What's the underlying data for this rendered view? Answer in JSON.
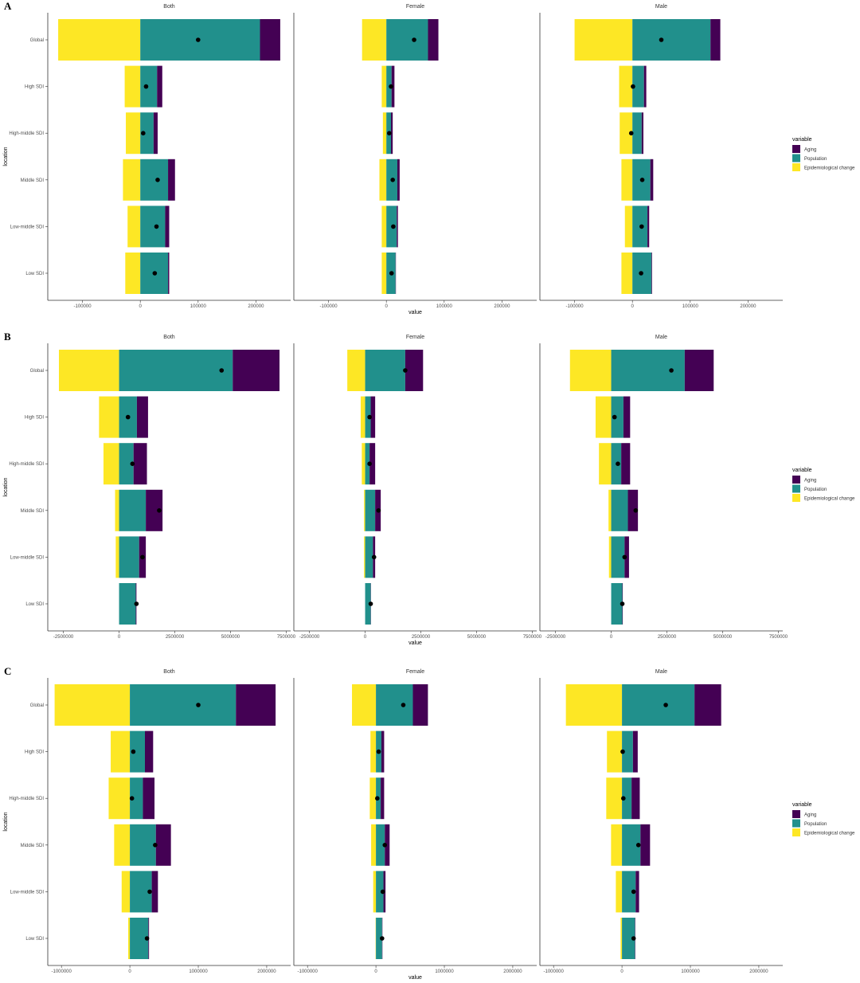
{
  "colors": {
    "aging": "#440154",
    "population": "#21908C",
    "epi": "#FDE725",
    "point": "#000000",
    "axis": "#333333"
  },
  "labels": {
    "ylabel": "location",
    "xlabel": "value",
    "legend_title": "variable",
    "legend": [
      "Aging",
      "Population",
      "Epidemiological change"
    ],
    "facets": [
      "Both",
      "Female",
      "Male"
    ],
    "locations": [
      "Global",
      "High SDI",
      "High-middle SDI",
      "Middle SDI",
      "Low-middle SDI",
      "Low SDI"
    ]
  },
  "chart_data": [
    {
      "panel": "A",
      "type": "bar",
      "xlabel": "value",
      "ylabel": "location",
      "xlim": [
        -160000,
        260000
      ],
      "xticks": [
        {
          "v": -100000,
          "label": "-100000"
        },
        {
          "v": 0,
          "label": "0"
        },
        {
          "v": 100000,
          "label": "100000"
        },
        {
          "v": 200000,
          "label": "200000"
        }
      ],
      "show_xlabel": true,
      "facets": [
        {
          "name": "Both",
          "rows": [
            {
              "location": "Global",
              "epi": -142000,
              "pop": 207000,
              "aging": 35000,
              "total": 100000
            },
            {
              "location": "High SDI",
              "epi": -27000,
              "pop": 29000,
              "aging": 9000,
              "total": 10000
            },
            {
              "location": "High-middle SDI",
              "epi": -25000,
              "pop": 23000,
              "aging": 7000,
              "total": 5000
            },
            {
              "location": "Middle SDI",
              "epi": -30000,
              "pop": 48000,
              "aging": 12000,
              "total": 30000
            },
            {
              "location": "Low-middle SDI",
              "epi": -22000,
              "pop": 43000,
              "aging": 7000,
              "total": 28000
            },
            {
              "location": "Low SDI",
              "epi": -26000,
              "pop": 48000,
              "aging": 2000,
              "total": 25000
            }
          ]
        },
        {
          "name": "Female",
          "rows": [
            {
              "location": "Global",
              "epi": -42000,
              "pop": 72000,
              "aging": 18000,
              "total": 48000
            },
            {
              "location": "High SDI",
              "epi": -8000,
              "pop": 9000,
              "aging": 5000,
              "total": 8000
            },
            {
              "location": "High-middle SDI",
              "epi": -6000,
              "pop": 8000,
              "aging": 3000,
              "total": 5000
            },
            {
              "location": "Middle SDI",
              "epi": -12000,
              "pop": 19000,
              "aging": 4000,
              "total": 11000
            },
            {
              "location": "Low-middle SDI",
              "epi": -8000,
              "pop": 18000,
              "aging": 2000,
              "total": 12000
            },
            {
              "location": "Low SDI",
              "epi": -8000,
              "pop": 16000,
              "aging": 500,
              "total": 9000
            }
          ]
        },
        {
          "name": "Male",
          "rows": [
            {
              "location": "Global",
              "epi": -100000,
              "pop": 135000,
              "aging": 17000,
              "total": 50000
            },
            {
              "location": "High SDI",
              "epi": -23000,
              "pop": 20000,
              "aging": 4000,
              "total": 1000
            },
            {
              "location": "High-middle SDI",
              "epi": -22000,
              "pop": 16000,
              "aging": 3000,
              "total": -2000
            },
            {
              "location": "Middle SDI",
              "epi": -19000,
              "pop": 31000,
              "aging": 5000,
              "total": 17000
            },
            {
              "location": "Low-middle SDI",
              "epi": -13000,
              "pop": 26000,
              "aging": 3000,
              "total": 16000
            },
            {
              "location": "Low SDI",
              "epi": -19000,
              "pop": 33000,
              "aging": 1000,
              "total": 15000
            }
          ]
        }
      ]
    },
    {
      "panel": "B",
      "type": "bar",
      "xlabel": "value",
      "ylabel": "location",
      "xlim": [
        -3200000,
        7700000
      ],
      "xticks": [
        {
          "v": -2500000,
          "label": "-2500000"
        },
        {
          "v": 0,
          "label": "0"
        },
        {
          "v": 2500000,
          "label": "2500000"
        },
        {
          "v": 5000000,
          "label": "5000000"
        },
        {
          "v": 7500000,
          "label": "7500000"
        }
      ],
      "show_xlabel": true,
      "facets": [
        {
          "name": "Both",
          "rows": [
            {
              "location": "Global",
              "epi": -2700000,
              "pop": 5100000,
              "aging": 2100000,
              "total": 4600000
            },
            {
              "location": "High SDI",
              "epi": -900000,
              "pop": 800000,
              "aging": 500000,
              "total": 400000
            },
            {
              "location": "High-middle SDI",
              "epi": -700000,
              "pop": 650000,
              "aging": 600000,
              "total": 600000
            },
            {
              "location": "Middle SDI",
              "epi": -180000,
              "pop": 1200000,
              "aging": 750000,
              "total": 1800000
            },
            {
              "location": "Low-middle SDI",
              "epi": -150000,
              "pop": 900000,
              "aging": 300000,
              "total": 1050000
            },
            {
              "location": "Low SDI",
              "epi": 0,
              "pop": 750000,
              "aging": 30000,
              "total": 780000
            }
          ]
        },
        {
          "name": "Female",
          "rows": [
            {
              "location": "Global",
              "epi": -800000,
              "pop": 1800000,
              "aging": 800000,
              "total": 1800000
            },
            {
              "location": "High SDI",
              "epi": -200000,
              "pop": 250000,
              "aging": 200000,
              "total": 200000
            },
            {
              "location": "High-middle SDI",
              "epi": -150000,
              "pop": 200000,
              "aging": 250000,
              "total": 200000
            },
            {
              "location": "Middle SDI",
              "epi": -50000,
              "pop": 450000,
              "aging": 250000,
              "total": 600000
            },
            {
              "location": "Low-middle SDI",
              "epi": -50000,
              "pop": 350000,
              "aging": 100000,
              "total": 400000
            },
            {
              "location": "Low SDI",
              "epi": 0,
              "pop": 250000,
              "aging": 10000,
              "total": 250000
            }
          ]
        },
        {
          "name": "Male",
          "rows": [
            {
              "location": "Global",
              "epi": -1850000,
              "pop": 3300000,
              "aging": 1300000,
              "total": 2700000
            },
            {
              "location": "High SDI",
              "epi": -700000,
              "pop": 550000,
              "aging": 300000,
              "total": 150000
            },
            {
              "location": "High-middle SDI",
              "epi": -550000,
              "pop": 450000,
              "aging": 400000,
              "total": 300000
            },
            {
              "location": "Middle SDI",
              "epi": -120000,
              "pop": 750000,
              "aging": 450000,
              "total": 1100000
            },
            {
              "location": "Low-middle SDI",
              "epi": -100000,
              "pop": 600000,
              "aging": 200000,
              "total": 600000
            },
            {
              "location": "Low SDI",
              "epi": 0,
              "pop": 500000,
              "aging": 20000,
              "total": 500000
            }
          ]
        }
      ]
    },
    {
      "panel": "C",
      "type": "bar",
      "xlabel": "value",
      "ylabel": "location",
      "xlim": [
        -1200000,
        2350000
      ],
      "xticks": [
        {
          "v": -1000000,
          "label": "-1000000"
        },
        {
          "v": 0,
          "label": "0"
        },
        {
          "v": 1000000,
          "label": "1000000"
        },
        {
          "v": 2000000,
          "label": "2000000"
        }
      ],
      "show_xlabel": true,
      "facets": [
        {
          "name": "Both",
          "rows": [
            {
              "location": "Global",
              "epi": -1100000,
              "pop": 1550000,
              "aging": 580000,
              "total": 1000000
            },
            {
              "location": "High SDI",
              "epi": -280000,
              "pop": 220000,
              "aging": 120000,
              "total": 50000
            },
            {
              "location": "High-middle SDI",
              "epi": -310000,
              "pop": 190000,
              "aging": 170000,
              "total": 30000
            },
            {
              "location": "Middle SDI",
              "epi": -230000,
              "pop": 380000,
              "aging": 220000,
              "total": 370000
            },
            {
              "location": "Low-middle SDI",
              "epi": -120000,
              "pop": 320000,
              "aging": 90000,
              "total": 290000
            },
            {
              "location": "Low SDI",
              "epi": -25000,
              "pop": 270000,
              "aging": 10000,
              "total": 250000
            }
          ]
        },
        {
          "name": "Female",
          "rows": [
            {
              "location": "Global",
              "epi": -350000,
              "pop": 540000,
              "aging": 220000,
              "total": 400000
            },
            {
              "location": "High SDI",
              "epi": -80000,
              "pop": 80000,
              "aging": 40000,
              "total": 40000
            },
            {
              "location": "High-middle SDI",
              "epi": -90000,
              "pop": 70000,
              "aging": 50000,
              "total": 20000
            },
            {
              "location": "Middle SDI",
              "epi": -70000,
              "pop": 130000,
              "aging": 70000,
              "total": 130000
            },
            {
              "location": "Low-middle SDI",
              "epi": -40000,
              "pop": 110000,
              "aging": 30000,
              "total": 100000
            },
            {
              "location": "Low SDI",
              "epi": -5000,
              "pop": 90000,
              "aging": 5000,
              "total": 90000
            }
          ]
        },
        {
          "name": "Male",
          "rows": [
            {
              "location": "Global",
              "epi": -820000,
              "pop": 1060000,
              "aging": 390000,
              "total": 640000
            },
            {
              "location": "High SDI",
              "epi": -220000,
              "pop": 160000,
              "aging": 70000,
              "total": 10000
            },
            {
              "location": "High-middle SDI",
              "epi": -230000,
              "pop": 140000,
              "aging": 120000,
              "total": 20000
            },
            {
              "location": "Middle SDI",
              "epi": -160000,
              "pop": 270000,
              "aging": 140000,
              "total": 240000
            },
            {
              "location": "Low-middle SDI",
              "epi": -90000,
              "pop": 200000,
              "aging": 50000,
              "total": 170000
            },
            {
              "location": "Low SDI",
              "epi": -20000,
              "pop": 190000,
              "aging": 5000,
              "total": 170000
            }
          ]
        }
      ]
    }
  ]
}
